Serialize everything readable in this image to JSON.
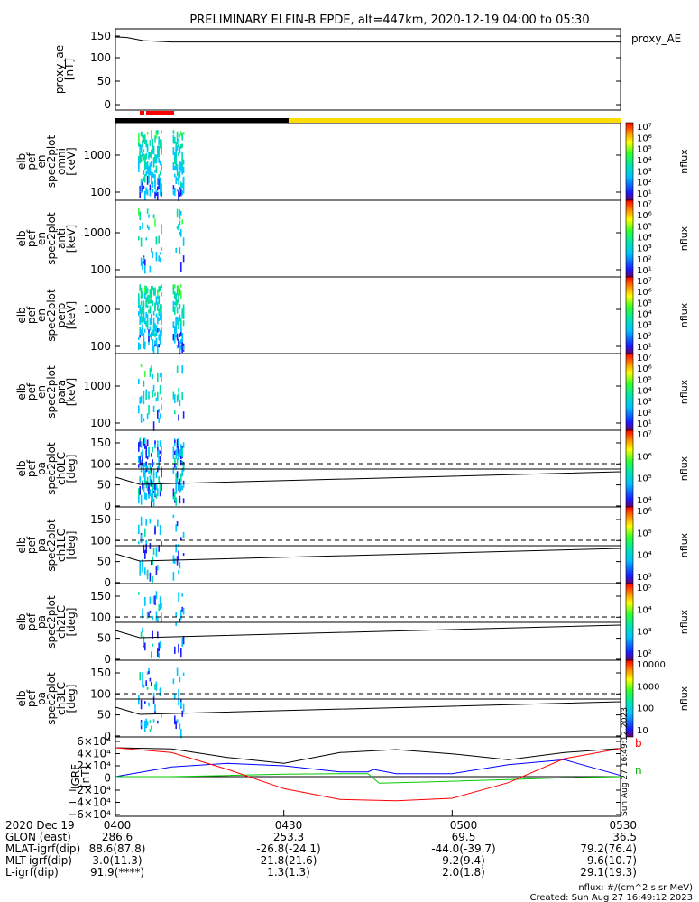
{
  "chart_data": {
    "type": "multi-panel-spectrogram",
    "title": "PRELIMINARY ELFIN-B EPDE, alt=447km, 2020-12-19 04:00 to 05:30",
    "xlim": [
      "04:00",
      "05:30"
    ],
    "panels": [
      {
        "name": "proxy_ae",
        "ylabel": [
          "proxy_ae",
          "[nT]"
        ],
        "yticks": [
          "150",
          "100",
          "50",
          "0"
        ],
        "ylim": [
          -10,
          160
        ],
        "legend": "proxy_AE",
        "series": [
          {
            "x": [
              0,
              2,
              5,
              10,
              20,
              40,
              60,
              80,
              90
            ],
            "y": [
              148,
              147,
              140,
              137,
              137,
              137,
              137,
              137,
              137
            ]
          }
        ]
      },
      {
        "name": "en-omni",
        "ylabel": [
          "elb",
          "pef",
          "en",
          "spec2plot",
          "omni",
          "[keV]"
        ],
        "yticks": [
          "1000",
          "100"
        ],
        "colorbar": {
          "labels": [
            "10⁷",
            "10⁶",
            "10⁵",
            "10⁴",
            "10³",
            "10²",
            "10¹"
          ],
          "unit": "nflux"
        }
      },
      {
        "name": "en-anti",
        "ylabel": [
          "elb",
          "pef",
          "en",
          "spec2plot",
          "anti",
          "[keV]"
        ],
        "yticks": [
          "1000",
          "100"
        ],
        "colorbar": {
          "labels": [
            "10⁷",
            "10⁶",
            "10⁵",
            "10⁴",
            "10³",
            "10²",
            "10¹"
          ],
          "unit": "nflux"
        }
      },
      {
        "name": "en-perp",
        "ylabel": [
          "elb",
          "pef",
          "en",
          "spec2plot",
          "perp",
          "[keV]"
        ],
        "yticks": [
          "1000",
          "100"
        ],
        "colorbar": {
          "labels": [
            "10⁷",
            "10⁶",
            "10⁵",
            "10⁴",
            "10³",
            "10²",
            "10¹"
          ],
          "unit": "nflux"
        }
      },
      {
        "name": "en-para",
        "ylabel": [
          "elb",
          "pef",
          "en",
          "spec2plot",
          "para",
          "[keV]"
        ],
        "yticks": [
          "1000",
          "100"
        ],
        "colorbar": {
          "labels": [
            "10⁷",
            "10⁶",
            "10⁵",
            "10⁴",
            "10³",
            "10²",
            "10¹"
          ],
          "unit": "nflux"
        }
      },
      {
        "name": "pa-ch0LC",
        "ylabel": [
          "elb",
          "pef",
          "pa",
          "spec2plot",
          "ch0LC",
          "[deg]"
        ],
        "yticks": [
          "150",
          "100",
          "50",
          "0"
        ],
        "colorbar": {
          "labels": [
            "10⁷",
            "10⁶",
            "10⁵",
            "10⁴"
          ],
          "unit": "nflux"
        }
      },
      {
        "name": "pa-ch1LC",
        "ylabel": [
          "elb",
          "pef",
          "pa",
          "spec2plot",
          "ch1LC",
          "[deg]"
        ],
        "yticks": [
          "150",
          "100",
          "50",
          "0"
        ],
        "colorbar": {
          "labels": [
            "10⁶",
            "10⁵",
            "10⁴",
            "10³"
          ],
          "unit": "nflux"
        }
      },
      {
        "name": "pa-ch2LC",
        "ylabel": [
          "elb",
          "pef",
          "pa",
          "spec2plot",
          "ch2LC",
          "[deg]"
        ],
        "yticks": [
          "150",
          "100",
          "50",
          "0"
        ],
        "colorbar": {
          "labels": [
            "10⁵",
            "10⁴",
            "10³",
            "10²"
          ],
          "unit": "nflux"
        }
      },
      {
        "name": "pa-ch3LC",
        "ylabel": [
          "elb",
          "pef",
          "pa",
          "spec2plot",
          "ch3LC",
          "[deg]"
        ],
        "yticks": [
          "150",
          "100",
          "50",
          "0"
        ],
        "colorbar": {
          "labels": [
            "10000",
            "1000",
            "100",
            "10"
          ],
          "unit": "nflux"
        }
      },
      {
        "name": "igrf",
        "ylabel": [
          "IGRF",
          "[nT]"
        ],
        "yticks": [
          "6×10⁴",
          "4×10⁴",
          "2×10⁴",
          "0",
          "−2×10⁴",
          "−4×10⁴",
          "−6×10⁴"
        ],
        "ylim": [
          -60000,
          60000
        ],
        "series": [
          {
            "color": "#000000",
            "x": [
              0,
              10,
              20,
              30,
              40,
              50,
              60,
              70,
              80,
              90
            ],
            "y": [
              48000,
              46000,
              32000,
              22000,
              40000,
              45000,
              38000,
              28000,
              40000,
              47000
            ]
          },
          {
            "color": "#0000ff",
            "x": [
              0,
              10,
              20,
              30,
              40,
              45,
              46,
              50,
              60,
              70,
              80,
              90
            ],
            "y": [
              0,
              16000,
              22000,
              18000,
              8000,
              8000,
              12000,
              5000,
              5000,
              20000,
              28000,
              2000
            ]
          },
          {
            "color": "#00cc00",
            "x": [
              0,
              10,
              20,
              30,
              40,
              45,
              47,
              55,
              70,
              80,
              90
            ],
            "y": [
              0,
              0,
              2000,
              4000,
              5000,
              5000,
              -11000,
              -9000,
              -5000,
              -2000,
              0
            ]
          },
          {
            "color": "#ff0000",
            "x": [
              0,
              10,
              20,
              30,
              40,
              50,
              60,
              70,
              80,
              90
            ],
            "y": [
              48000,
              40000,
              12000,
              -20000,
              -38000,
              -40000,
              -36000,
              -10000,
              30000,
              47000
            ]
          }
        ]
      }
    ],
    "xticks": [
      "0400",
      "0430",
      "0500",
      "0530"
    ],
    "side_labels": {
      "b": "b",
      "n": "n"
    },
    "timestamp_vertical": "Sun Aug 27 16:49:12 2023",
    "annotation_rows": [
      {
        "label": "2020 Dec 19",
        "values": [
          "0400",
          "0430",
          "0500",
          "0530"
        ]
      },
      {
        "label": "GLON (east)",
        "values": [
          "286.6",
          "253.3",
          "69.5",
          "36.5"
        ]
      },
      {
        "label": "MLAT-igrf(dip)",
        "values": [
          "88.6(87.8)",
          "-26.8(-24.1)",
          "-44.0(-39.7)",
          "79.2(76.4)"
        ]
      },
      {
        "label": "MLT-igrf(dip)",
        "values": [
          "3.0(11.3)",
          "21.8(21.6)",
          "9.2(9.4)",
          "9.6(10.7)"
        ]
      },
      {
        "label": "L-igrf(dip)",
        "values": [
          "91.9(****)",
          "1.3(1.3)",
          "2.0(1.8)",
          "29.1(19.3)"
        ]
      }
    ],
    "footer": {
      "units": "nflux: #/(cm^2 s sr MeV)",
      "created": "Created: Sun Aug 27 16:49:12 2023"
    }
  }
}
